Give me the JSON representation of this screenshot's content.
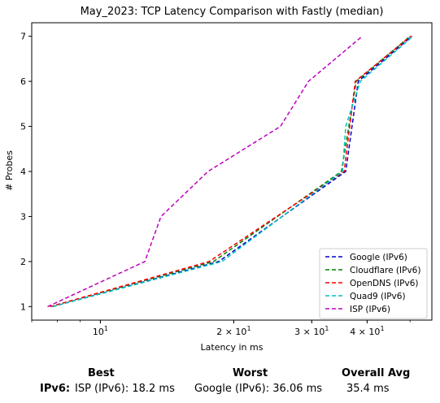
{
  "chart_data": {
    "type": "line",
    "title": "May_2023: TCP Latency Comparison with Fastly (median)",
    "xlabel": "Latency in ms",
    "ylabel": "# Probes",
    "xscale": "log",
    "xlim": [
      7.0,
      56.0
    ],
    "ylim": [
      0.7,
      7.3
    ],
    "x_ticks": [
      {
        "value": 10,
        "label": "10",
        "sup": "1",
        "base": "10"
      },
      {
        "value": 20,
        "label": "2×10",
        "sup": "1",
        "base": "2 × 10"
      },
      {
        "value": 30,
        "label": "3×10",
        "sup": "1",
        "base": "3 × 10"
      },
      {
        "value": 40,
        "label": "4×10",
        "sup": "1",
        "base": "4 × 10"
      }
    ],
    "y_ticks": [
      1,
      2,
      3,
      4,
      5,
      6,
      7
    ],
    "grid": false,
    "legend_position": "lower-right",
    "series": [
      {
        "name": "Google (IPv6)",
        "color": "#0000cc",
        "x": [
          7.8,
          18.5,
          35.8,
          38.2,
          50.5
        ],
        "y": [
          1,
          2,
          4,
          6,
          7
        ]
      },
      {
        "name": "Cloudflare (IPv6)",
        "color": "#008000",
        "x": [
          7.7,
          18.0,
          35.0,
          37.8,
          50.0
        ],
        "y": [
          1,
          2,
          4,
          6,
          7
        ]
      },
      {
        "name": "OpenDNS (IPv6)",
        "color": "#ff0000",
        "x": [
          7.7,
          17.6,
          35.5,
          37.6,
          50.2
        ],
        "y": [
          1,
          2,
          4,
          6,
          7
        ]
      },
      {
        "name": "Quad9 (IPv6)",
        "color": "#00bfbf",
        "x": [
          7.8,
          18.8,
          35.2,
          35.8,
          38.6,
          50.8
        ],
        "y": [
          1,
          2,
          4,
          5,
          6,
          7
        ]
      },
      {
        "name": "ISP (IPv6)",
        "color": "#bf00bf",
        "x": [
          7.6,
          12.6,
          13.7,
          17.5,
          25.5,
          29.5,
          39.0
        ],
        "y": [
          1,
          2,
          3,
          4,
          5,
          6,
          7
        ]
      }
    ]
  },
  "summary": {
    "best_header": "Best",
    "worst_header": "Worst",
    "avg_header": "Overall Avg",
    "row_label": "IPv6",
    "row_colon": ":",
    "best_value": "ISP (IPv6): 18.2 ms",
    "worst_value": "Google (IPv6): 36.06 ms",
    "avg_value": "35.4 ms"
  }
}
